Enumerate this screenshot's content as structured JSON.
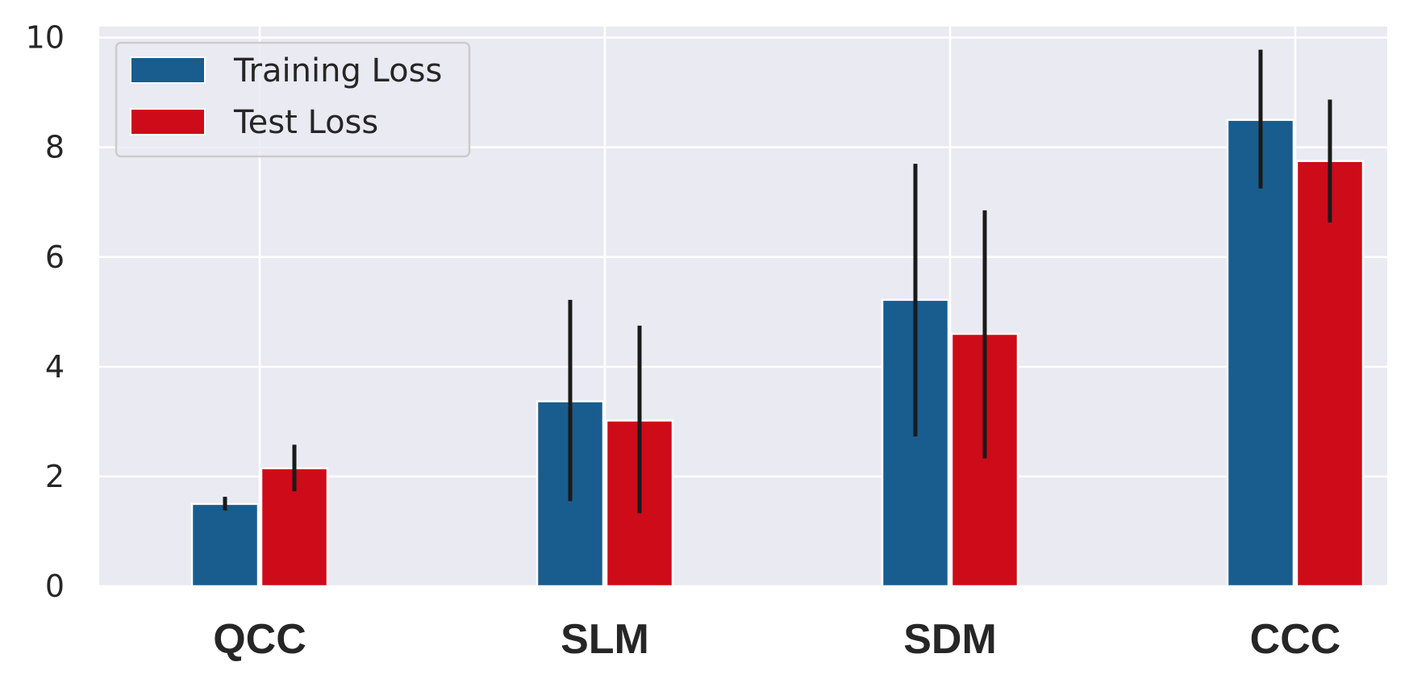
{
  "chart_data": {
    "type": "bar",
    "title": "",
    "xlabel": "",
    "ylabel": "",
    "categories": [
      "QCC",
      "SLM",
      "SDM",
      "CCC"
    ],
    "series": [
      {
        "name": "Training Loss",
        "color": "#185d8e",
        "values": [
          1.5,
          3.37,
          5.22,
          8.5
        ],
        "err_low": [
          1.38,
          1.55,
          2.73,
          7.25
        ],
        "err_high": [
          1.63,
          5.22,
          7.7,
          9.78
        ]
      },
      {
        "name": "Test Loss",
        "color": "#ce0b18",
        "values": [
          2.15,
          3.02,
          4.6,
          7.75
        ],
        "err_low": [
          1.73,
          1.33,
          2.33,
          6.63
        ],
        "err_high": [
          2.58,
          4.75,
          6.85,
          8.87
        ]
      }
    ],
    "ylim": [
      0,
      10.2
    ],
    "yticks": [
      0,
      2,
      4,
      6,
      8,
      10
    ],
    "grid": true,
    "legend_position": "top-left"
  }
}
